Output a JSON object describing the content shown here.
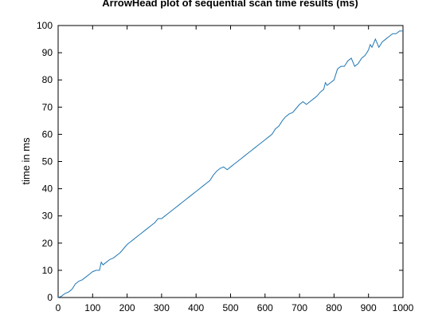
{
  "chart_data": {
    "type": "line",
    "title": "ArrowHead plot of sequential scan time results (ms)",
    "xlabel": "",
    "ylabel": "time in ms",
    "xlim": [
      0,
      1000
    ],
    "ylim": [
      0,
      100
    ],
    "xticks": [
      0,
      100,
      200,
      300,
      400,
      500,
      600,
      700,
      800,
      900,
      1000
    ],
    "yticks": [
      0,
      10,
      20,
      30,
      40,
      50,
      60,
      70,
      80,
      90,
      100
    ],
    "grid": false,
    "line_color": "#1f77b4",
    "series": [
      {
        "x": [
          0,
          10,
          20,
          30,
          40,
          50,
          60,
          70,
          80,
          90,
          100,
          110,
          120,
          125,
          130,
          140,
          150,
          160,
          170,
          180,
          190,
          200,
          210,
          220,
          230,
          240,
          250,
          260,
          270,
          280,
          290,
          300,
          310,
          320,
          330,
          340,
          350,
          360,
          370,
          380,
          390,
          400,
          410,
          420,
          430,
          440,
          450,
          460,
          470,
          480,
          490,
          500,
          510,
          520,
          530,
          540,
          550,
          560,
          570,
          580,
          590,
          600,
          610,
          620,
          630,
          640,
          650,
          660,
          670,
          680,
          690,
          700,
          710,
          720,
          730,
          740,
          750,
          760,
          770,
          775,
          780,
          790,
          800,
          810,
          820,
          830,
          840,
          850,
          860,
          870,
          880,
          890,
          900,
          905,
          910,
          920,
          930,
          940,
          950,
          960,
          970,
          980,
          990,
          1000
        ],
        "y": [
          0,
          0.5,
          1.5,
          2,
          3,
          5,
          6,
          6.5,
          7.5,
          8.5,
          9.5,
          10,
          10,
          13,
          12,
          13,
          14,
          14.5,
          15.5,
          16.5,
          18,
          19.5,
          20.5,
          21.5,
          22.5,
          23.5,
          24.5,
          25.5,
          26.5,
          27.5,
          29,
          29,
          30,
          31,
          32,
          33,
          34,
          35,
          36,
          37,
          38,
          39,
          40,
          41,
          42,
          43,
          45,
          46.5,
          47.5,
          48,
          47,
          48,
          49,
          50,
          51,
          52,
          53,
          54,
          55,
          56,
          57,
          58,
          59,
          60,
          62,
          63,
          65,
          66.5,
          67.5,
          68,
          69.5,
          71,
          72,
          71,
          72,
          73,
          74,
          75.5,
          76.5,
          79,
          78,
          79,
          80,
          84,
          85,
          85,
          87,
          88,
          85,
          86,
          88,
          89,
          91,
          93,
          92,
          95,
          92,
          94,
          95,
          96,
          97,
          97,
          98,
          98
        ]
      }
    ]
  }
}
